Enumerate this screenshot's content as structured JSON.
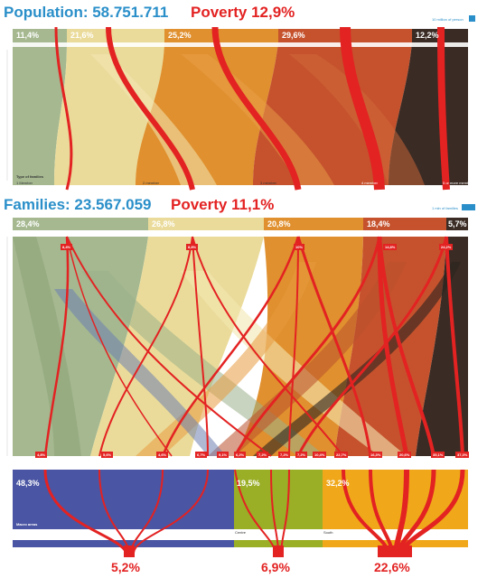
{
  "population": {
    "label": "Population: 58.751.711",
    "poverty": "Poverty 12,9%",
    "legend": "10 million of person"
  },
  "families": {
    "label": "Families: 23.567.059",
    "poverty": "Poverty 11,1%",
    "legend": "1 mln of families"
  },
  "type_of_families": {
    "title": "Type of families",
    "population_shares": [
      "11,4%",
      "21,6%",
      "25,2%",
      "29,6%",
      "12,2%"
    ],
    "family_shares": [
      "28,4%",
      "26,8%",
      "20,8%",
      "18,4%",
      "5,7%"
    ],
    "labels": [
      "1 Member",
      "2 member",
      "3 member",
      "4 member",
      "5 or more member"
    ],
    "poverty_badges": [
      "8,4%",
      "8,8%",
      "10%",
      "14,8%",
      "24,2%"
    ],
    "colors": [
      "#a5b890",
      "#eadb9a",
      "#e0902e",
      "#c5522d",
      "#3a2b24"
    ]
  },
  "flow_badges": [
    "4,8%",
    "5,6%",
    "4,6%",
    "6,7%",
    "9,1%",
    "6,2%",
    "7,2%",
    "7,2%",
    "7,2%",
    "10,4%",
    "22,7%",
    "16,3%",
    "20,6%",
    "35,1%",
    "37,3%"
  ],
  "macro_areas": {
    "title": "Macro areas",
    "shares": [
      "48,3%",
      "19,5%",
      "32,2%"
    ],
    "labels": [
      "North",
      "Centre",
      "South"
    ],
    "poverty": [
      "5,2%",
      "6,9%",
      "22,6%"
    ],
    "colors": [
      "#4a55a3",
      "#9aae26",
      "#f0a81a"
    ]
  },
  "accent_red": "#e32222",
  "accent_blue": "#2a8fc9"
}
